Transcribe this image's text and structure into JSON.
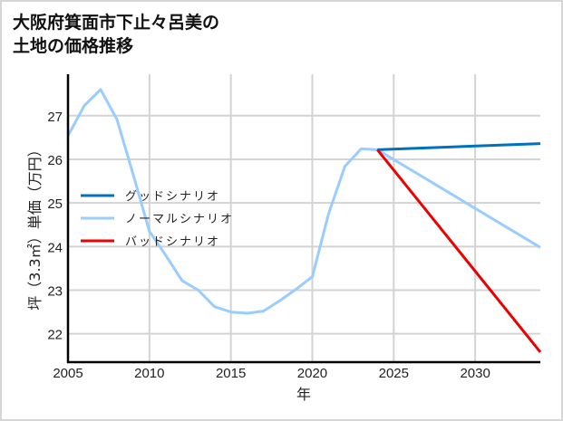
{
  "title": "大阪府箕面市下止々呂美の\n土地の価格推移",
  "chart_data": {
    "type": "line",
    "title": "大阪府箕面市下止々呂美の土地の価格推移",
    "xlabel": "年",
    "ylabel": "坪（3.3㎡）単価（万円）",
    "xlim": [
      2005,
      2034
    ],
    "ylim": [
      21.35,
      27.95
    ],
    "xticks": [
      2005,
      2010,
      2015,
      2020,
      2025,
      2030
    ],
    "yticks": [
      22,
      23,
      24,
      25,
      26,
      27
    ],
    "grid": true,
    "legend_position": "left-center",
    "series": [
      {
        "name": "グッドシナリオ",
        "color": "#0070c0",
        "x": [
          2024,
          2034
        ],
        "y": [
          26.22,
          26.36
        ]
      },
      {
        "name": "ノーマルシナリオ",
        "color": "#99ccff",
        "x": [
          2005,
          2006,
          2007,
          2008,
          2009,
          2010,
          2011,
          2012,
          2013,
          2014,
          2015,
          2016,
          2017,
          2018,
          2019,
          2020,
          2021,
          2022,
          2023,
          2024,
          2034
        ],
        "y": [
          26.54,
          27.23,
          27.6,
          26.92,
          25.65,
          24.35,
          23.8,
          23.22,
          23.0,
          22.62,
          22.5,
          22.47,
          22.52,
          22.76,
          23.02,
          23.31,
          24.75,
          25.84,
          26.24,
          26.22,
          23.98
        ]
      },
      {
        "name": "バッドシナリオ",
        "color": "#ee0000",
        "x": [
          2024,
          2034
        ],
        "y": [
          26.22,
          21.58
        ]
      }
    ]
  }
}
